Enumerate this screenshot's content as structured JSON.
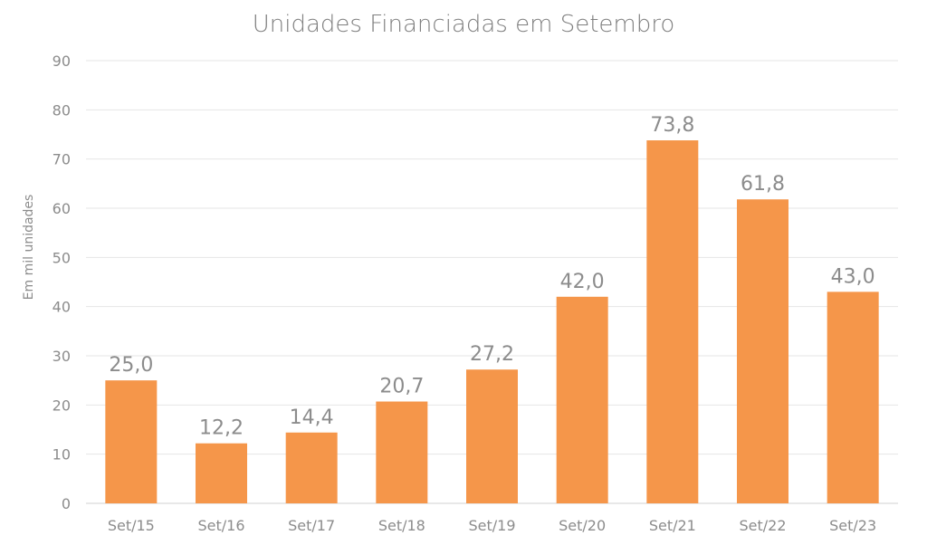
{
  "chart_data": {
    "type": "bar",
    "title": "Unidades Financiadas em Setembro",
    "xlabel": "",
    "ylabel": "Em mil unidades",
    "categories": [
      "Set/15",
      "Set/16",
      "Set/17",
      "Set/18",
      "Set/19",
      "Set/20",
      "Set/21",
      "Set/22",
      "Set/23"
    ],
    "values": [
      25.0,
      12.2,
      14.4,
      20.7,
      27.2,
      42.0,
      73.8,
      61.8,
      43.0
    ],
    "value_labels": [
      "25,0",
      "12,2",
      "14,4",
      "20,7",
      "27,2",
      "42,0",
      "73,8",
      "61,8",
      "43,0"
    ],
    "yticks": [
      0,
      10,
      20,
      30,
      40,
      50,
      60,
      70,
      80,
      90
    ],
    "ylim": [
      0,
      90
    ],
    "grid": true,
    "legend": "none",
    "bar_color": "#f5964a",
    "text_color": "#8c8c8c",
    "grid_color": "#e6e6e6"
  }
}
